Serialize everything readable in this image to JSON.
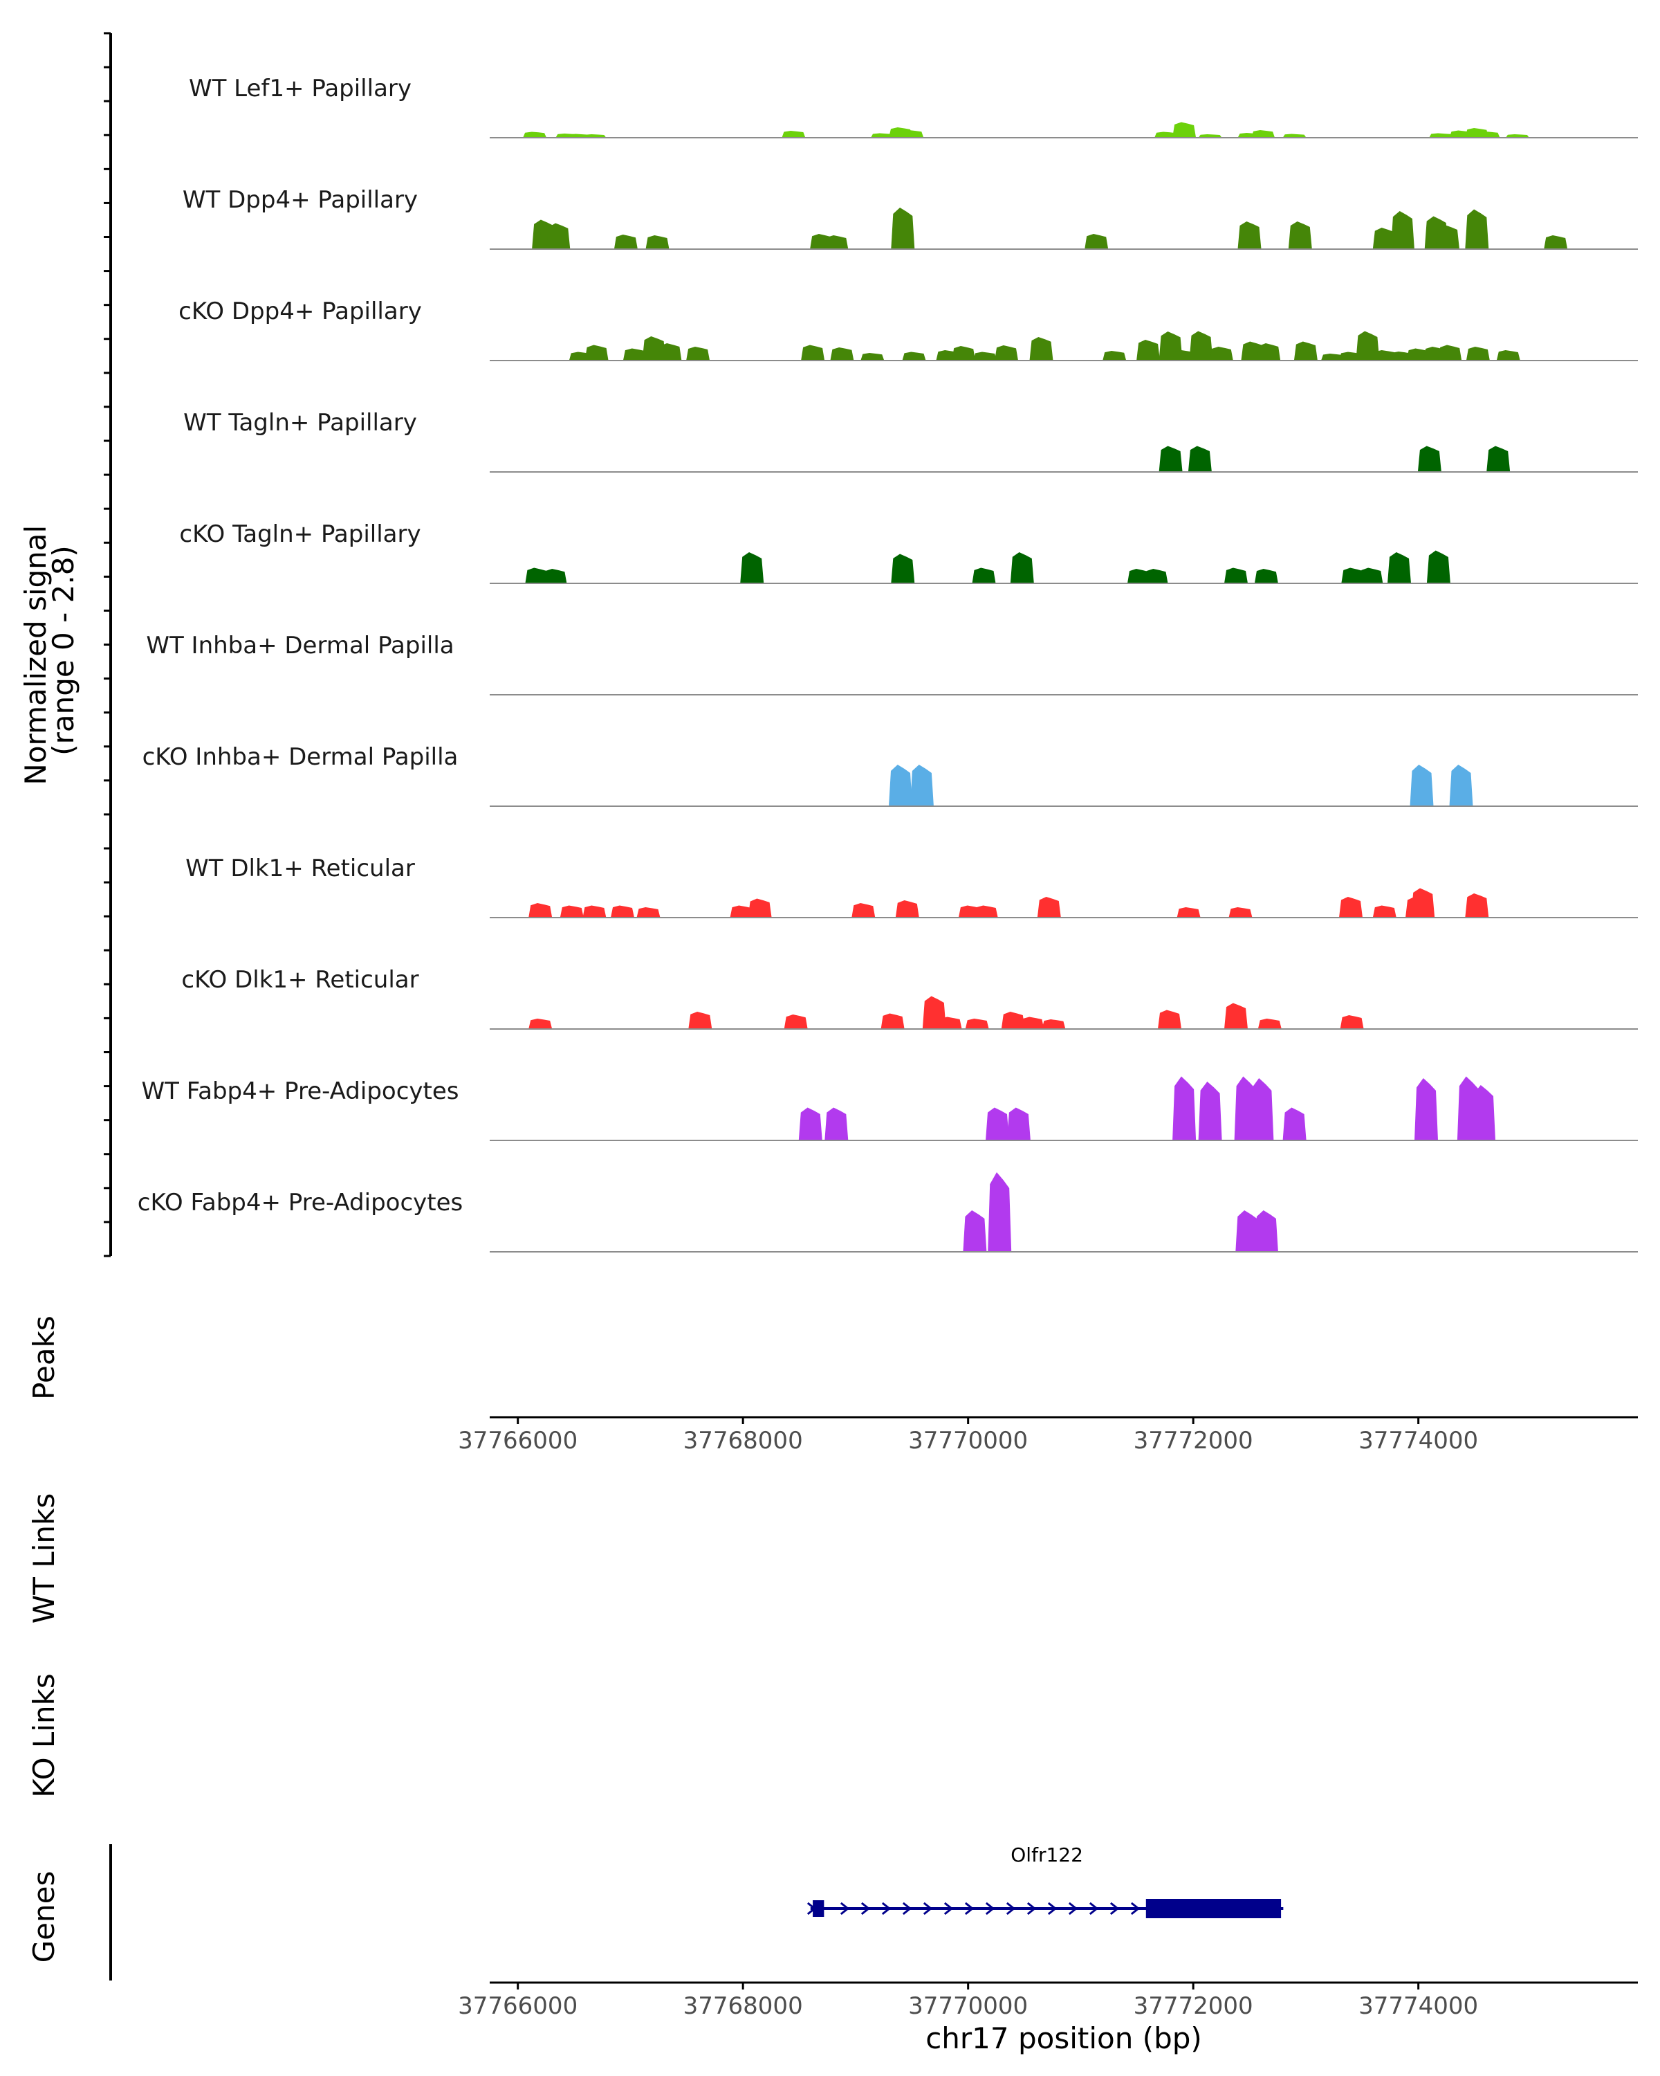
{
  "chart_data": {
    "type": "area",
    "title": "",
    "xlabel": "chr17 position (bp)",
    "ylabel": "Normalized signal\n(range 0 - 2.8)",
    "ylabel_lines": [
      "Normalized signal",
      "(range 0 - 2.8)"
    ],
    "y_range": [
      0,
      2.8
    ],
    "x_range": [
      37765750,
      37775950
    ],
    "x_ticks": [
      37766000,
      37768000,
      37770000,
      37772000,
      37774000
    ],
    "x_tick_labels": [
      "37766000",
      "37768000",
      "37770000",
      "37772000",
      "37774000"
    ],
    "colors": {
      "papillary_light": "#6cd10b",
      "papillary": "#458608",
      "papillary_dark": "#006400",
      "dermal_papilla": "#5aaee6",
      "reticular": "#ff3030",
      "adipocyte": "#b23aee",
      "gene": "#00008b",
      "baseline": "#8c8c8c",
      "axis": "#000000"
    },
    "series": [
      {
        "name": "WT Lef1+ Papillary",
        "color": "#6cd10b",
        "peaks": [
          [
            37766150,
            0.17
          ],
          [
            37766440,
            0.12
          ],
          [
            37766540,
            0.11
          ],
          [
            37766680,
            0.1
          ],
          [
            37768450,
            0.2
          ],
          [
            37769240,
            0.13
          ],
          [
            37769400,
            0.3
          ],
          [
            37769500,
            0.22
          ],
          [
            37771760,
            0.17
          ],
          [
            37771920,
            0.45
          ],
          [
            37772150,
            0.1
          ],
          [
            37772500,
            0.14
          ],
          [
            37772620,
            0.22
          ],
          [
            37772900,
            0.11
          ],
          [
            37774200,
            0.13
          ],
          [
            37774380,
            0.21
          ],
          [
            37774520,
            0.28
          ],
          [
            37774620,
            0.18
          ],
          [
            37774880,
            0.1
          ]
        ]
      },
      {
        "name": "WT Dpp4+ Papillary",
        "color": "#458608",
        "peaks": [
          [
            37766230,
            0.85
          ],
          [
            37766290,
            0.7
          ],
          [
            37766360,
            0.75
          ],
          [
            37766960,
            0.42
          ],
          [
            37767240,
            0.4
          ],
          [
            37768700,
            0.44
          ],
          [
            37768830,
            0.4
          ],
          [
            37769420,
            1.2
          ],
          [
            37771140,
            0.44
          ],
          [
            37772500,
            0.8
          ],
          [
            37772950,
            0.8
          ],
          [
            37773700,
            0.62
          ],
          [
            37773860,
            1.1
          ],
          [
            37774160,
            0.95
          ],
          [
            37774260,
            0.7
          ],
          [
            37774520,
            1.15
          ],
          [
            37775220,
            0.4
          ]
        ]
      },
      {
        "name": "cKO Dpp4+ Papillary",
        "color": "#458608",
        "peaks": [
          [
            37766560,
            0.25
          ],
          [
            37766700,
            0.45
          ],
          [
            37767040,
            0.35
          ],
          [
            37767210,
            0.7
          ],
          [
            37767350,
            0.5
          ],
          [
            37767600,
            0.4
          ],
          [
            37768620,
            0.45
          ],
          [
            37768880,
            0.38
          ],
          [
            37769150,
            0.22
          ],
          [
            37769520,
            0.25
          ],
          [
            37769820,
            0.3
          ],
          [
            37769960,
            0.42
          ],
          [
            37770150,
            0.25
          ],
          [
            37770340,
            0.44
          ],
          [
            37770650,
            0.68
          ],
          [
            37771300,
            0.28
          ],
          [
            37771600,
            0.6
          ],
          [
            37771800,
            0.84
          ],
          [
            37771920,
            0.3
          ],
          [
            37772070,
            0.85
          ],
          [
            37772250,
            0.4
          ],
          [
            37772530,
            0.55
          ],
          [
            37772670,
            0.5
          ],
          [
            37773000,
            0.55
          ],
          [
            37773240,
            0.2
          ],
          [
            37773400,
            0.25
          ],
          [
            37773550,
            0.85
          ],
          [
            37773700,
            0.3
          ],
          [
            37773850,
            0.26
          ],
          [
            37774000,
            0.35
          ],
          [
            37774150,
            0.4
          ],
          [
            37774280,
            0.45
          ],
          [
            37774530,
            0.4
          ],
          [
            37774800,
            0.3
          ]
        ]
      },
      {
        "name": "WT Tagln+ Papillary",
        "color": "#006400",
        "peaks": [
          [
            37771800,
            0.75
          ],
          [
            37772060,
            0.75
          ],
          [
            37774100,
            0.75
          ],
          [
            37774710,
            0.75
          ]
        ]
      },
      {
        "name": "cKO Tagln+ Papillary",
        "color": "#006400",
        "peaks": [
          [
            37766170,
            0.45
          ],
          [
            37766330,
            0.42
          ],
          [
            37768080,
            0.9
          ],
          [
            37769420,
            0.85
          ],
          [
            37770140,
            0.45
          ],
          [
            37770480,
            0.9
          ],
          [
            37771520,
            0.42
          ],
          [
            37771670,
            0.42
          ],
          [
            37772380,
            0.45
          ],
          [
            37772650,
            0.42
          ],
          [
            37773420,
            0.45
          ],
          [
            37773580,
            0.45
          ],
          [
            37773830,
            0.9
          ],
          [
            37774180,
            0.95
          ]
        ]
      },
      {
        "name": "WT Inhba+ Dermal Papilla",
        "color": "#5aaee6",
        "peaks": []
      },
      {
        "name": "cKO Inhba+ Dermal Papilla",
        "color": "#5aaee6",
        "peaks": [
          [
            37769400,
            1.2
          ],
          [
            37769590,
            1.2
          ],
          [
            37774030,
            1.2
          ],
          [
            37774380,
            1.2
          ]
        ]
      },
      {
        "name": "WT Dlk1+ Reticular",
        "color": "#ff3030",
        "peaks": [
          [
            37766200,
            0.42
          ],
          [
            37766480,
            0.35
          ],
          [
            37766680,
            0.35
          ],
          [
            37766930,
            0.35
          ],
          [
            37767160,
            0.3
          ],
          [
            37767990,
            0.35
          ],
          [
            37768150,
            0.55
          ],
          [
            37769070,
            0.42
          ],
          [
            37769460,
            0.5
          ],
          [
            37770020,
            0.35
          ],
          [
            37770160,
            0.35
          ],
          [
            37770720,
            0.6
          ],
          [
            37771960,
            0.3
          ],
          [
            37772420,
            0.3
          ],
          [
            37773400,
            0.6
          ],
          [
            37773700,
            0.35
          ],
          [
            37773990,
            0.6
          ],
          [
            37774040,
            0.85
          ],
          [
            37774520,
            0.7
          ]
        ]
      },
      {
        "name": "cKO Dlk1+ Reticular",
        "color": "#ff3030",
        "peaks": [
          [
            37766200,
            0.3
          ],
          [
            37767620,
            0.5
          ],
          [
            37768470,
            0.42
          ],
          [
            37769330,
            0.45
          ],
          [
            37769700,
            0.95
          ],
          [
            37769840,
            0.35
          ],
          [
            37770080,
            0.3
          ],
          [
            37770400,
            0.5
          ],
          [
            37770570,
            0.35
          ],
          [
            37770760,
            0.28
          ],
          [
            37771790,
            0.55
          ],
          [
            37772380,
            0.75
          ],
          [
            37772680,
            0.3
          ],
          [
            37773410,
            0.4
          ]
        ]
      },
      {
        "name": "WT Fabp4+ Pre-Adipocytes",
        "color": "#b23aee",
        "peaks": [
          [
            37768600,
            0.95
          ],
          [
            37768830,
            0.95
          ],
          [
            37770260,
            0.95
          ],
          [
            37770450,
            0.95
          ],
          [
            37771920,
            1.85
          ],
          [
            37772150,
            1.7
          ],
          [
            37772470,
            1.85
          ],
          [
            37772610,
            1.8
          ],
          [
            37772900,
            0.95
          ],
          [
            37774070,
            1.8
          ],
          [
            37774450,
            1.85
          ],
          [
            37774580,
            1.6
          ]
        ]
      },
      {
        "name": "cKO Fabp4+ Pre-Adipocytes",
        "color": "#b23aee",
        "peaks": [
          [
            37770060,
            1.2
          ],
          [
            37770280,
            2.3
          ],
          [
            37772480,
            1.2
          ],
          [
            37772650,
            1.2
          ]
        ]
      }
    ],
    "side_labels": {
      "peaks": "Peaks",
      "wt_links": "WT Links",
      "ko_links": "KO Links",
      "genes": "Genes"
    },
    "genes": [
      {
        "name": "Olfr122",
        "strand": "+",
        "start": 37768600,
        "end": 37772800,
        "exon1": [
          37768620,
          37768720
        ],
        "cds": [
          37771580,
          37772780
        ]
      }
    ]
  }
}
